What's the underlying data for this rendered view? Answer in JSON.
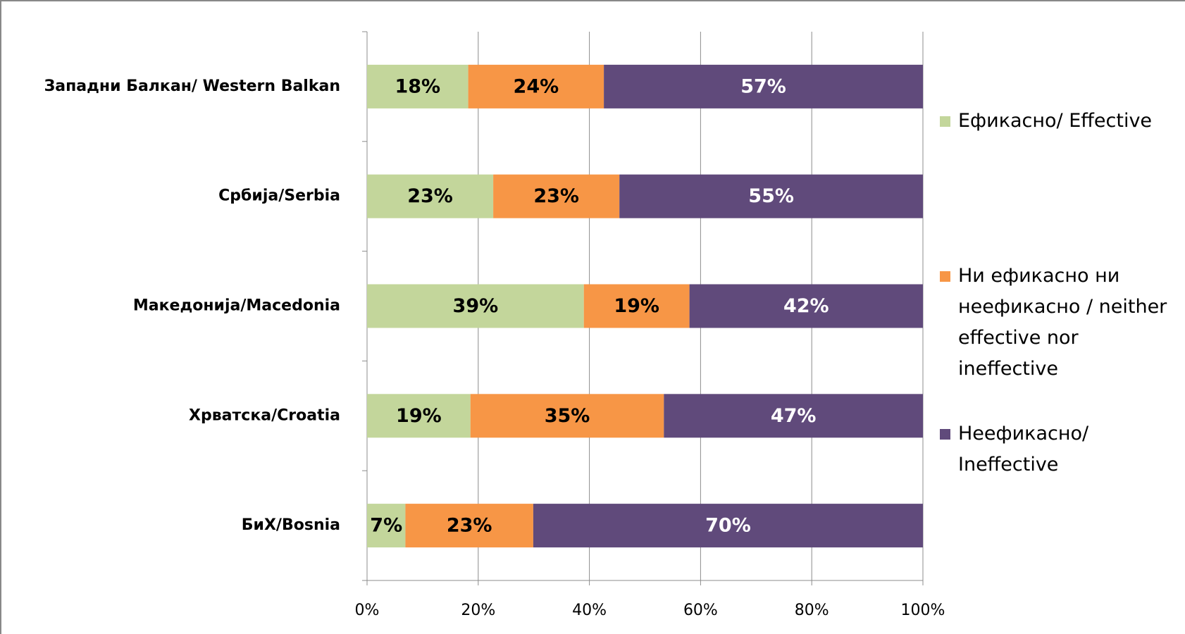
{
  "chart_data": {
    "type": "stacked_barh",
    "categories": [
      "Западни Балкан/ Western Balkan",
      "Србија/Serbia",
      "Македонија/Macedonia",
      "Хрватска/Croatia",
      "БиХ/Bosnia"
    ],
    "series": [
      {
        "name": "Ефикасно/ Effective",
        "color": "#c3d69b",
        "values": [
          18.2,
          22.7,
          39.0,
          18.6,
          6.9
        ],
        "value_labels": [
          "18%",
          "23%",
          "39%",
          "19%",
          "7%"
        ]
      },
      {
        "name": "Ни ефикасно ни неефикасно / neither effective nor ineffective",
        "color": "#f79646",
        "values": [
          24.4,
          22.7,
          19.0,
          34.8,
          23.0
        ],
        "value_labels": [
          "24%",
          "23%",
          "19%",
          "35%",
          "23%"
        ]
      },
      {
        "name": "Неефикасно/ Ineffective",
        "color": "#604a7b",
        "values": [
          57.4,
          54.6,
          42.0,
          46.6,
          70.1
        ],
        "value_labels": [
          "57%",
          "55%",
          "42%",
          "47%",
          "70%"
        ]
      }
    ],
    "xlim": [
      0,
      100
    ],
    "xticks": [
      {
        "value": 0,
        "label": "0%"
      },
      {
        "value": 20,
        "label": "20%"
      },
      {
        "value": 40,
        "label": "40%"
      },
      {
        "value": 60,
        "label": "60%"
      },
      {
        "value": 80,
        "label": "80%"
      },
      {
        "value": 100,
        "label": "100%"
      }
    ],
    "grid": true,
    "legend": "right"
  }
}
